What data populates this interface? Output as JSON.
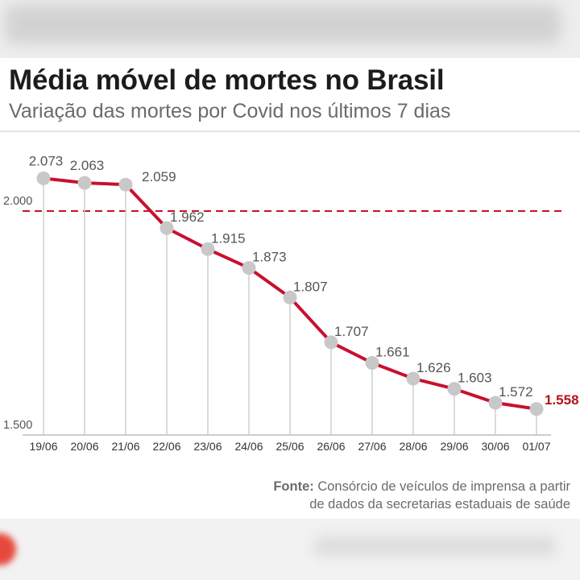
{
  "title": "Média móvel de mortes no Brasil",
  "subtitle": "Variação das mortes por Covid nos últimos 7 dias",
  "source": {
    "label": "Fonte:",
    "line1": "Consórcio de veículos de imprensa a partir",
    "line2": "de dados da secretarias estaduais de saúde"
  },
  "colors": {
    "line": "#c8102e",
    "point": "#c8c8c8",
    "reference": "#c8102e",
    "last_label": "#b5121b"
  },
  "chart_data": {
    "type": "line",
    "title": "Média móvel de mortes no Brasil",
    "subtitle": "Variação das mortes por Covid nos últimos 7 dias",
    "xlabel": "",
    "ylabel": "",
    "categories": [
      "19/06",
      "20/06",
      "21/06",
      "22/06",
      "23/06",
      "24/06",
      "25/06",
      "26/06",
      "27/06",
      "28/06",
      "29/06",
      "30/06",
      "01/07"
    ],
    "values": [
      2073,
      2063,
      2059,
      1962,
      1915,
      1873,
      1807,
      1707,
      1661,
      1626,
      1603,
      1572,
      1558
    ],
    "value_labels": [
      "2.073",
      "2.063",
      "2.059",
      "1.962",
      "1.915",
      "1.873",
      "1.807",
      "1.707",
      "1.661",
      "1.626",
      "1.603",
      "1.572",
      "1.558"
    ],
    "y_ticks": [
      {
        "value": 1500,
        "label": "1.500"
      },
      {
        "value": 2000,
        "label": "2.000"
      }
    ],
    "reference_line": {
      "value": 2000,
      "style": "dashed"
    },
    "ylim": [
      1500,
      2100
    ],
    "grid": false,
    "legend": "none",
    "highlight_last": true
  }
}
